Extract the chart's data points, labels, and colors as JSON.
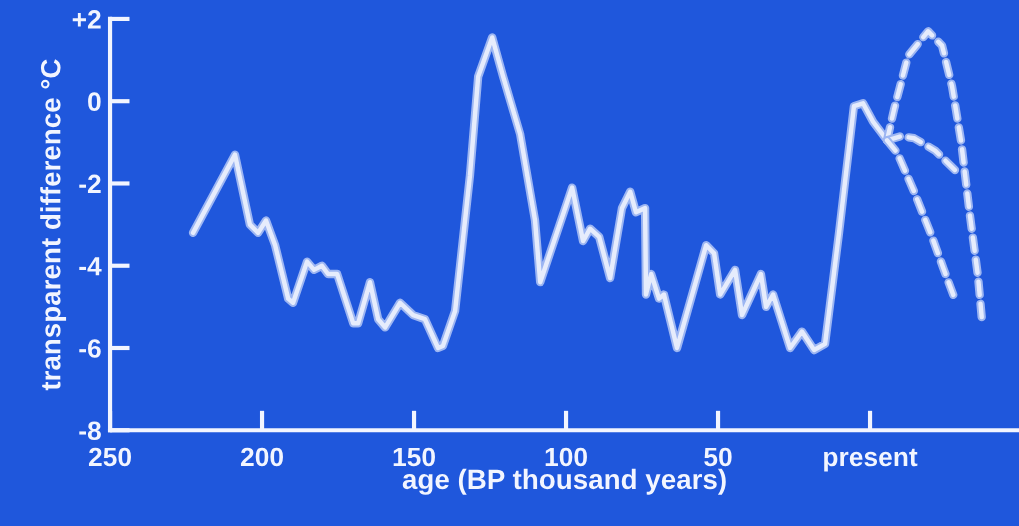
{
  "chart_data": {
    "type": "line",
    "xlabel": "age (BP thousand years)",
    "ylabel": "transparent difference °C",
    "xlim": [
      250,
      -49
    ],
    "ylim": [
      -8,
      2
    ],
    "xticks": [
      250,
      200,
      150,
      100,
      50,
      {
        "value": 0,
        "label": "present"
      }
    ],
    "yticks": [
      -8,
      -6,
      -4,
      -2,
      0,
      {
        "value": 2,
        "label": "+2"
      }
    ],
    "grid": false,
    "marker": "none",
    "series": [
      {
        "color": "#e6ecfc",
        "line_style": "solid",
        "x": [
          222.7,
          208.9,
          204,
          201.3,
          198.7,
          195.7,
          191.4,
          189.8,
          185.2,
          182.9,
          180.3,
          178.3,
          175.3,
          170,
          168.4,
          164.5,
          161.8,
          159.5,
          154.6,
          150.3,
          146.4,
          142.1,
          140.5,
          136.5,
          131.6,
          128.9,
          124.3,
          120.7,
          115.1,
          110.2,
          108.5,
          98,
          94.4,
          92.1,
          89.1,
          85.5,
          81.6,
          78.9,
          77,
          74,
          73.7,
          72,
          69.4,
          67.8,
          63.5,
          53.9,
          51.3,
          49.3,
          44.4,
          42.1,
          35.9,
          34.2,
          31.9,
          26.3,
          22.4,
          18.4,
          14.8,
          10.2,
          5.3,
          2.3,
          -1,
          -5.6
        ],
        "values": [
          -3.2,
          -1.3,
          -3.0,
          -3.2,
          -2.9,
          -3.5,
          -4.8,
          -4.9,
          -3.9,
          -4.1,
          -4.0,
          -4.2,
          -4.2,
          -5.4,
          -5.4,
          -4.4,
          -5.3,
          -5.5,
          -4.9,
          -5.2,
          -5.3,
          -6.0,
          -5.95,
          -5.1,
          -1.8,
          0.6,
          1.55,
          0.6,
          -0.8,
          -2.9,
          -4.4,
          -2.1,
          -3.4,
          -3.1,
          -3.3,
          -4.3,
          -2.6,
          -2.2,
          -2.7,
          -2.6,
          -4.7,
          -4.2,
          -4.8,
          -4.7,
          -6.0,
          -3.5,
          -3.7,
          -4.7,
          -4.1,
          -5.2,
          -4.2,
          -5.0,
          -4.7,
          -6.0,
          -5.6,
          -6.05,
          -5.9,
          -3.2,
          -0.12,
          -0.05,
          -0.5,
          -0.95
        ]
      },
      {
        "color": "#e6ecfc",
        "line_style": "dashed",
        "x": [
          -5.6,
          -7.9,
          -12.5,
          -19.1,
          -23.7,
          -27,
          -29.9,
          -32.9,
          -35.5,
          -36.8
        ],
        "values": [
          -0.95,
          -0.2,
          1.1,
          1.7,
          1.35,
          0.35,
          -0.95,
          -2.8,
          -4.25,
          -5.3
        ]
      },
      {
        "color": "#e6ecfc",
        "line_style": "dashed",
        "x": [
          -5.6,
          -10.2,
          -14.5,
          -21.4,
          -28.3
        ],
        "values": [
          -0.95,
          -0.85,
          -0.9,
          -1.2,
          -1.7
        ]
      },
      {
        "color": "#e6ecfc",
        "line_style": "dashed",
        "x": [
          -5.6,
          -8.9,
          -14.5,
          -20.4,
          -24.3,
          -27.6
        ],
        "values": [
          -0.95,
          -1.25,
          -2.2,
          -3.3,
          -4.1,
          -4.75
        ]
      }
    ]
  }
}
